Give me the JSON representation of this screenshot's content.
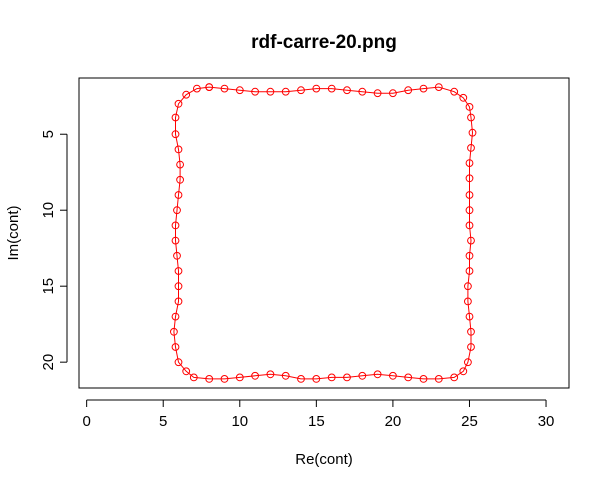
{
  "chart_data": {
    "type": "line",
    "title": "rdf-carre-20.png",
    "xlabel": "Re(cont)",
    "ylabel": "Im(cont)",
    "xlim": [
      -0.5,
      31.5
    ],
    "ylim": [
      1.3,
      21.7
    ],
    "y_reversed": true,
    "x_ticks": [
      0,
      5,
      10,
      15,
      20,
      25,
      30
    ],
    "y_ticks": [
      5,
      10,
      15,
      20
    ],
    "grid": false,
    "series_color": "#ff0000",
    "marker": "open-circle",
    "points": [
      [
        8,
        1.9
      ],
      [
        9,
        2.0
      ],
      [
        10,
        2.1
      ],
      [
        11,
        2.2
      ],
      [
        12,
        2.2
      ],
      [
        13,
        2.2
      ],
      [
        14,
        2.1
      ],
      [
        15,
        2.0
      ],
      [
        16,
        2.0
      ],
      [
        17,
        2.1
      ],
      [
        18,
        2.2
      ],
      [
        19,
        2.3
      ],
      [
        20,
        2.3
      ],
      [
        21,
        2.1
      ],
      [
        22,
        2.0
      ],
      [
        23,
        1.9
      ],
      [
        24,
        2.2
      ],
      [
        24.6,
        2.6
      ],
      [
        25,
        3.2
      ],
      [
        25.1,
        3.9
      ],
      [
        25.2,
        4.9
      ],
      [
        25.1,
        5.9
      ],
      [
        25.0,
        6.9
      ],
      [
        25.0,
        7.9
      ],
      [
        25.0,
        9.0
      ],
      [
        25.0,
        10.0
      ],
      [
        25.0,
        11.0
      ],
      [
        25.1,
        12.0
      ],
      [
        25.0,
        13.0
      ],
      [
        25.0,
        14.0
      ],
      [
        24.9,
        15.0
      ],
      [
        24.9,
        16.0
      ],
      [
        25.0,
        17.0
      ],
      [
        25.1,
        18.0
      ],
      [
        25.1,
        19.0
      ],
      [
        24.9,
        20.0
      ],
      [
        24.6,
        20.6
      ],
      [
        24,
        21.0
      ],
      [
        23,
        21.1
      ],
      [
        22,
        21.1
      ],
      [
        21,
        21.0
      ],
      [
        20,
        20.9
      ],
      [
        19,
        20.8
      ],
      [
        18,
        20.9
      ],
      [
        17,
        21.0
      ],
      [
        16,
        21.0
      ],
      [
        15,
        21.1
      ],
      [
        14,
        21.1
      ],
      [
        13,
        20.9
      ],
      [
        12,
        20.8
      ],
      [
        11,
        20.9
      ],
      [
        10,
        21.0
      ],
      [
        9,
        21.1
      ],
      [
        8,
        21.1
      ],
      [
        7,
        21.0
      ],
      [
        6.5,
        20.6
      ],
      [
        6.0,
        20.0
      ],
      [
        5.8,
        19.0
      ],
      [
        5.7,
        18.0
      ],
      [
        5.8,
        17.0
      ],
      [
        6.0,
        16.0
      ],
      [
        6.0,
        15.0
      ],
      [
        6.0,
        14.0
      ],
      [
        5.9,
        13.0
      ],
      [
        5.8,
        12.0
      ],
      [
        5.8,
        11.0
      ],
      [
        5.9,
        10.0
      ],
      [
        6.0,
        9.0
      ],
      [
        6.1,
        8.0
      ],
      [
        6.1,
        7.0
      ],
      [
        6.0,
        6.0
      ],
      [
        5.8,
        5.0
      ],
      [
        5.8,
        3.9
      ],
      [
        6.0,
        3.0
      ],
      [
        6.5,
        2.4
      ],
      [
        7.2,
        2.0
      ],
      [
        8,
        1.9
      ]
    ]
  }
}
